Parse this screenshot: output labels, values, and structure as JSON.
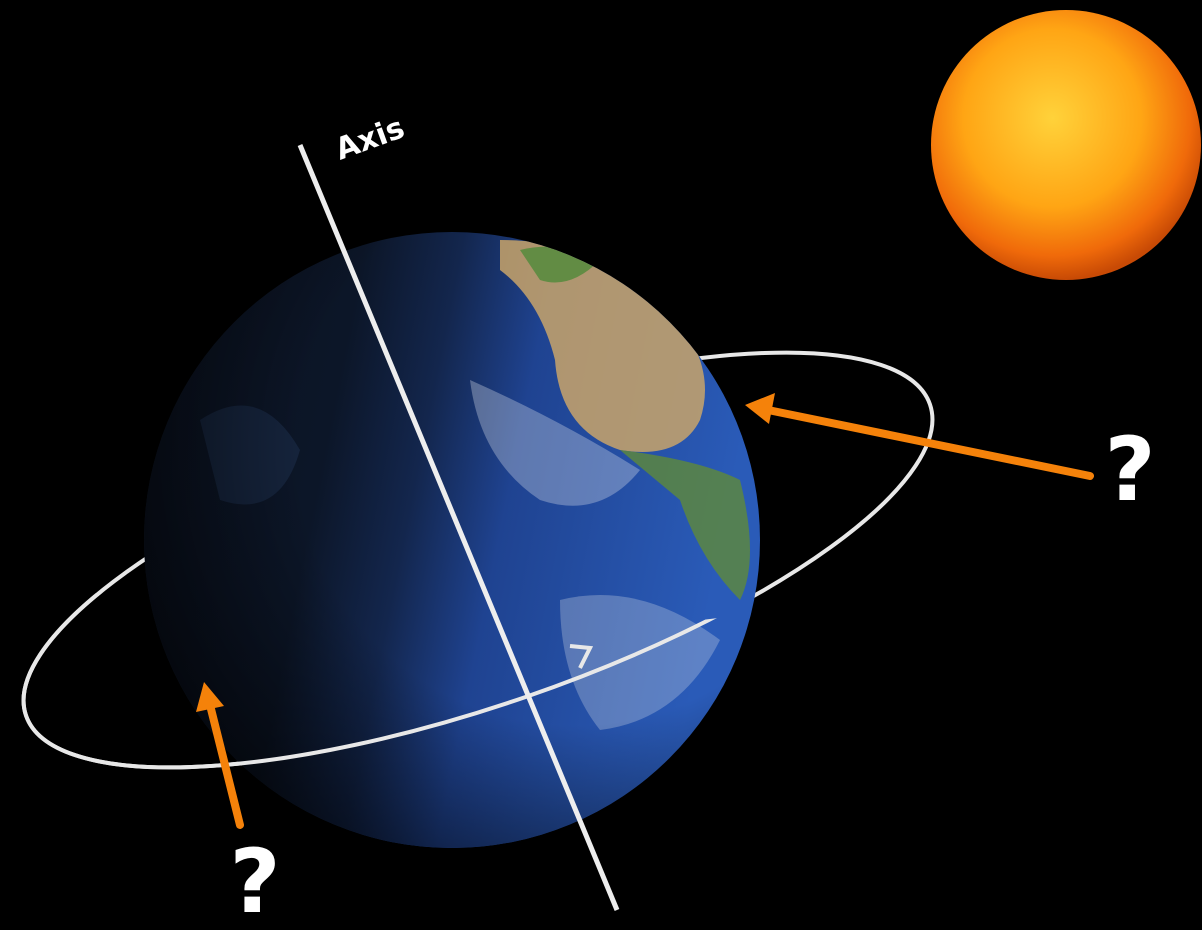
{
  "axis_label": "Axis",
  "markers": [
    "?",
    "?"
  ]
}
